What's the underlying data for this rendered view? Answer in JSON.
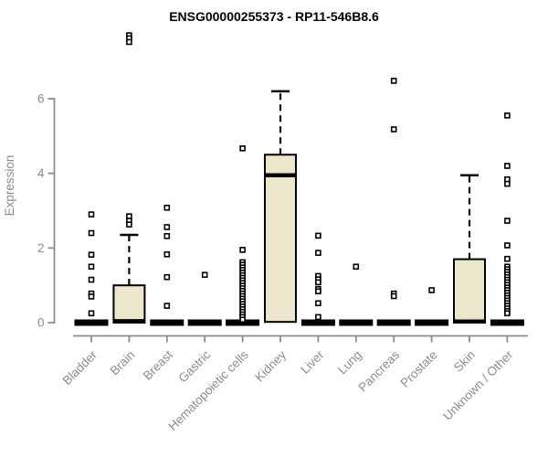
{
  "page": {
    "background": "#FFFFFF"
  },
  "colors": {
    "box_fill": "#ECE7CC",
    "axis_gray": "#8C8C8C",
    "ink": "#000000",
    "outlier_fill": "#FFFFFF"
  },
  "chart_data": {
    "type": "boxplot",
    "title": "ENSG00000255373 - RP11-546B8.6",
    "ylabel": "Expression",
    "xlabel": "",
    "yticks": [
      0,
      2,
      4,
      6
    ],
    "ylim": [
      0,
      7.9
    ],
    "grid": false,
    "legend": false,
    "categories": [
      "Bladder",
      "Brain",
      "Breast",
      "Gastric",
      "Hematopoietic cells",
      "Kidney",
      "Liver",
      "Lung",
      "Pancreas",
      "Prostate",
      "Skin",
      "Unknown / Other"
    ],
    "series": [
      {
        "category": "Bladder",
        "q1": 0,
        "median": 0,
        "q3": 0,
        "whisker_low": 0,
        "whisker_high": 0,
        "outliers": [
          2.9,
          2.4,
          1.82,
          1.5,
          1.15,
          0.78,
          0.7,
          0.25
        ]
      },
      {
        "category": "Brain",
        "q1": 0,
        "median": 0.04,
        "q3": 1.0,
        "whisker_low": 0,
        "whisker_high": 2.35,
        "outliers": [
          7.7,
          7.62,
          7.52,
          2.85,
          2.73,
          2.63
        ]
      },
      {
        "category": "Breast",
        "q1": 0,
        "median": 0,
        "q3": 0,
        "whisker_low": 0,
        "whisker_high": 0,
        "outliers": [
          3.08,
          2.56,
          2.32,
          1.83,
          1.22,
          0.45
        ]
      },
      {
        "category": "Gastric",
        "q1": 0,
        "median": 0,
        "q3": 0,
        "whisker_low": 0,
        "whisker_high": 0,
        "outliers": [
          1.28
        ]
      },
      {
        "category": "Hematopoietic cells",
        "q1": 0,
        "median": 0,
        "q3": 0,
        "whisker_low": 0,
        "whisker_high": 0,
        "outliers": [
          4.67,
          1.95,
          1.62,
          1.55,
          1.48,
          1.41,
          1.34,
          1.27,
          1.2,
          1.13,
          1.06,
          0.99,
          0.92,
          0.85,
          0.78,
          0.71,
          0.64,
          0.57,
          0.5,
          0.43,
          0.36,
          0.29,
          0.22,
          0.15,
          0.08
        ]
      },
      {
        "category": "Kidney",
        "q1": 0.02,
        "median": 3.95,
        "q3": 4.5,
        "whisker_low": 0,
        "whisker_high": 6.2,
        "outliers": []
      },
      {
        "category": "Liver",
        "q1": 0,
        "median": 0,
        "q3": 0,
        "whisker_low": 0,
        "whisker_high": 0,
        "outliers": [
          2.33,
          1.87,
          1.25,
          1.16,
          1.08,
          0.9,
          0.84,
          0.52,
          0.15
        ]
      },
      {
        "category": "Lung",
        "q1": 0,
        "median": 0,
        "q3": 0,
        "whisker_low": 0,
        "whisker_high": 0,
        "outliers": [
          1.5
        ]
      },
      {
        "category": "Pancreas",
        "q1": 0,
        "median": 0,
        "q3": 0,
        "whisker_low": 0,
        "whisker_high": 0,
        "outliers": [
          6.48,
          5.18,
          0.78,
          0.71
        ]
      },
      {
        "category": "Prostate",
        "q1": 0,
        "median": 0,
        "q3": 0,
        "whisker_low": 0,
        "whisker_high": 0,
        "outliers": [
          0.87
        ]
      },
      {
        "category": "Skin",
        "q1": 0,
        "median": 0.03,
        "q3": 1.7,
        "whisker_low": 0,
        "whisker_high": 3.95,
        "outliers": []
      },
      {
        "category": "Unknown / Other",
        "q1": 0,
        "median": 0,
        "q3": 0,
        "whisker_low": 0,
        "whisker_high": 0,
        "outliers": [
          5.55,
          4.2,
          3.84,
          3.72,
          2.73,
          2.07,
          1.71,
          1.5,
          1.43,
          1.36,
          1.29,
          1.22,
          1.15,
          1.08,
          1.01,
          0.94,
          0.87,
          0.8,
          0.73,
          0.66,
          0.59,
          0.52,
          0.45,
          0.38,
          0.31,
          0.25
        ]
      }
    ]
  }
}
